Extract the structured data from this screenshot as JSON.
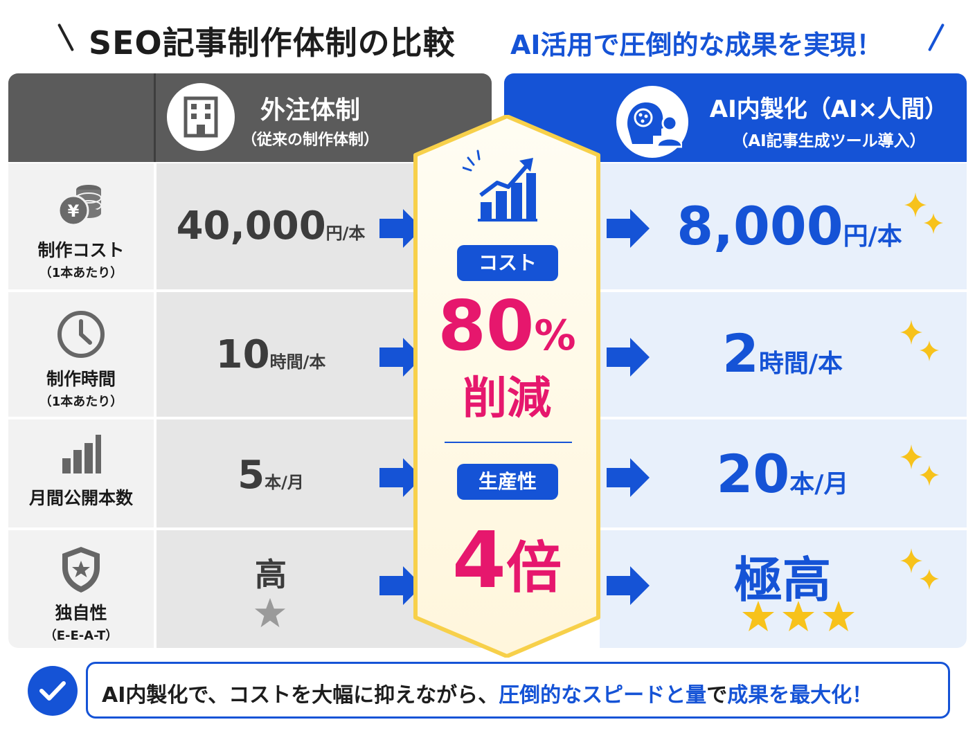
{
  "title": {
    "main": "SEO記事制作体制の比較",
    "sub": "AI活用で圧倒的な成果を実現！"
  },
  "left_header": {
    "title": "外注体制",
    "subtitle": "（従来の制作体制）",
    "icon": "building-icon"
  },
  "right_header": {
    "title": "AI内製化（AI×人間）",
    "subtitle": "（AI記事生成ツール導入）",
    "icon": "ai-brain-human-icon"
  },
  "rows": [
    {
      "label": "制作コスト",
      "sub": "（1本あたり）",
      "icon": "yen-coins-icon",
      "left_num": "40,000",
      "left_unit": "円/本",
      "right_num": "8,000",
      "right_unit": "円/本"
    },
    {
      "label": "制作時間",
      "sub": "（1本あたり）",
      "icon": "clock-icon",
      "left_num": "10",
      "left_unit": "時間/本",
      "right_num": "2",
      "right_unit": "時間/本"
    },
    {
      "label": "月間公開本数",
      "sub": "",
      "icon": "bar-chart-icon",
      "left_num": "5",
      "left_unit": "本/月",
      "right_num": "20",
      "right_unit": "本/月"
    },
    {
      "label": "独自性",
      "sub": "（E-E-A-T）",
      "icon": "shield-star-icon",
      "left_num": "高",
      "left_unit": "",
      "left_stars": 1,
      "right_num": "極高",
      "right_unit": "",
      "right_stars": 3
    }
  ],
  "center": {
    "icon": "growth-chart-icon",
    "cost_label": "コスト",
    "cost_value": "80",
    "cost_percent": "%",
    "cost_reduction": "削減",
    "productivity_label": "生産性",
    "productivity_value": "4",
    "productivity_unit": "倍"
  },
  "footer": {
    "part1": "AI内製化で、コストを大幅に抑えながら、",
    "part2": "圧倒的なスピードと量",
    "part3": "で",
    "part4": "成果を最大化！"
  },
  "colors": {
    "blue": "#1553d6",
    "pink": "#e6176d",
    "gray_header": "#5b5b5b",
    "gold": "#f7c21b"
  }
}
